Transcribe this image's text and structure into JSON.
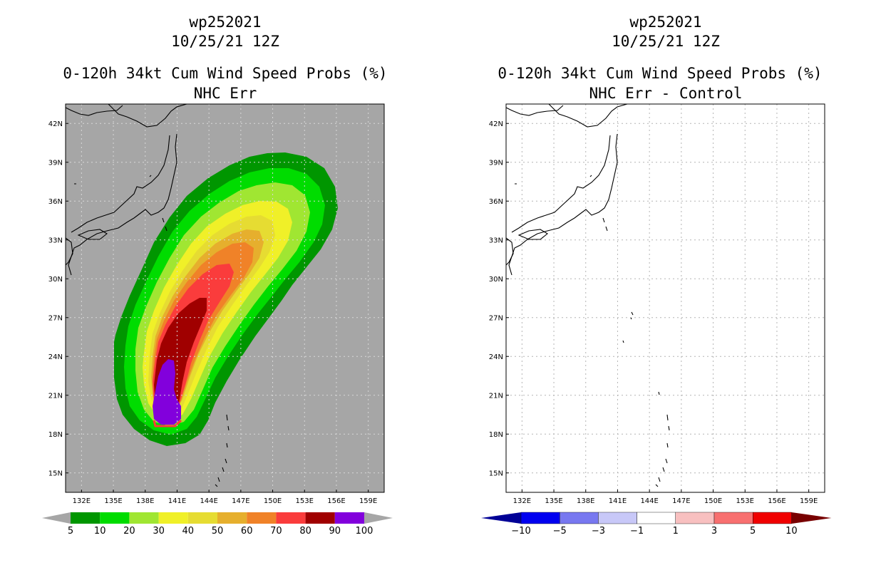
{
  "chart_data": [
    {
      "type": "heatmap",
      "title": [
        "wp252021",
        "10/25/21 12Z",
        "0-120h 34kt Cum Wind Speed Probs (%)",
        "NHC Err"
      ],
      "x_ticks": [
        "132E",
        "135E",
        "138E",
        "141E",
        "144E",
        "147E",
        "150E",
        "153E",
        "156E",
        "159E"
      ],
      "y_ticks": [
        "15N",
        "18N",
        "21N",
        "24N",
        "27N",
        "30N",
        "33N",
        "36N",
        "39N",
        "42N"
      ],
      "xlim": [
        130.5,
        160.5
      ],
      "ylim": [
        13.5,
        43.5
      ],
      "grid": true,
      "levels": [
        5,
        10,
        20,
        30,
        40,
        50,
        60,
        70,
        80,
        90,
        100
      ],
      "colors": [
        "#009600",
        "#00dc00",
        "#a0e632",
        "#f0f028",
        "#e6dc32",
        "#e6af2d",
        "#f08228",
        "#fa3c3c",
        "#a00000",
        "#8200dc"
      ],
      "background": "#a6a6a6",
      "colorbar_labels": [
        "5",
        "10",
        "20",
        "30",
        "40",
        "50",
        "60",
        "70",
        "80",
        "90",
        "100"
      ],
      "description": "Elongated probability swath from about 140E 18N curving NE toward 150E 39N; highest (90-100%) near 140E 19-23N"
    },
    {
      "type": "heatmap",
      "title": [
        "wp252021",
        "10/25/21 12Z",
        "0-120h 34kt Cum Wind Speed Probs (%)",
        "NHC Err - Control"
      ],
      "x_ticks": [
        "132E",
        "135E",
        "138E",
        "141E",
        "144E",
        "147E",
        "150E",
        "153E",
        "156E",
        "159E"
      ],
      "y_ticks": [
        "15N",
        "18N",
        "21N",
        "24N",
        "27N",
        "30N",
        "33N",
        "36N",
        "39N",
        "42N"
      ],
      "xlim": [
        130.5,
        160.5
      ],
      "ylim": [
        13.5,
        43.5
      ],
      "grid": true,
      "levels": [
        -10,
        -5,
        -3,
        -1,
        1,
        3,
        5,
        10
      ],
      "colors": [
        "#000096",
        "#0000f0",
        "#7878f0",
        "#c8c8f8",
        "#ffffff",
        "#f8c0c0",
        "#f87070",
        "#f00000",
        "#780000"
      ],
      "background": "#ffffff",
      "colorbar_labels": [
        "-10",
        "-5",
        "-3",
        "-1",
        "1",
        "3",
        "5",
        "10"
      ],
      "description": "Difference field is entirely white (no difference)"
    }
  ]
}
